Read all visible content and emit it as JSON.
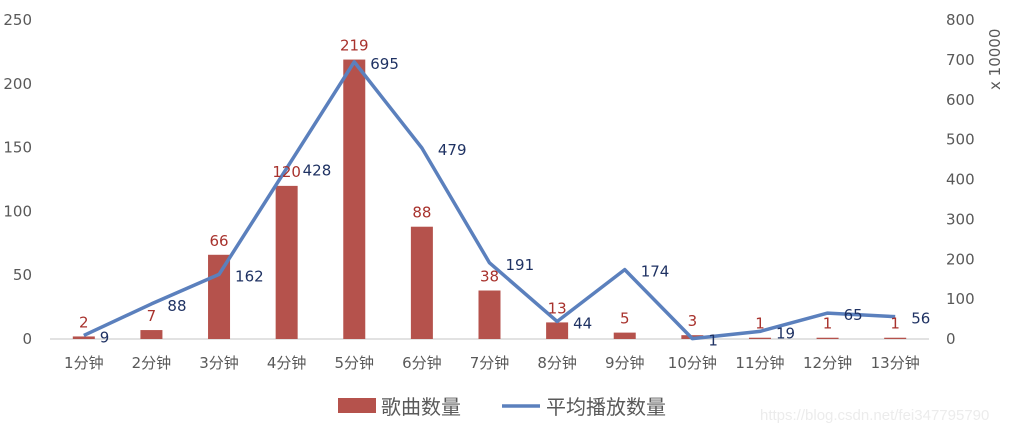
{
  "chart_data": {
    "type": "bar+line",
    "categories": [
      "1分钟",
      "2分钟",
      "3分钟",
      "4分钟",
      "5分钟",
      "6分钟",
      "7分钟",
      "8分钟",
      "9分钟",
      "10分钟",
      "11分钟",
      "12分钟",
      "13分钟"
    ],
    "series": [
      {
        "name": "歌曲数量",
        "type": "bar",
        "axis": "left",
        "color": "#b5524c",
        "values": [
          2,
          7,
          66,
          120,
          219,
          88,
          38,
          13,
          5,
          3,
          1,
          1,
          1
        ]
      },
      {
        "name": "平均播放数量",
        "type": "line",
        "axis": "right",
        "color": "#5b80bd",
        "values": [
          9,
          88,
          162,
          428,
          695,
          479,
          191,
          44,
          174,
          1,
          19,
          65,
          56
        ]
      }
    ],
    "y_left": {
      "range": [
        0,
        250
      ],
      "ticks": [
        "0",
        "50",
        "100",
        "150",
        "200",
        "250"
      ]
    },
    "y_right": {
      "range": [
        0,
        800
      ],
      "ticks": [
        "0",
        "100",
        "200",
        "300",
        "400",
        "500",
        "600",
        "700",
        "800"
      ],
      "label": "x 10000"
    },
    "grid": false,
    "legend": "bottom",
    "label_colors": {
      "bar": "#a8322d",
      "line": "#1f3263"
    }
  },
  "watermark": "https://blog.csdn.net/fei347795790"
}
